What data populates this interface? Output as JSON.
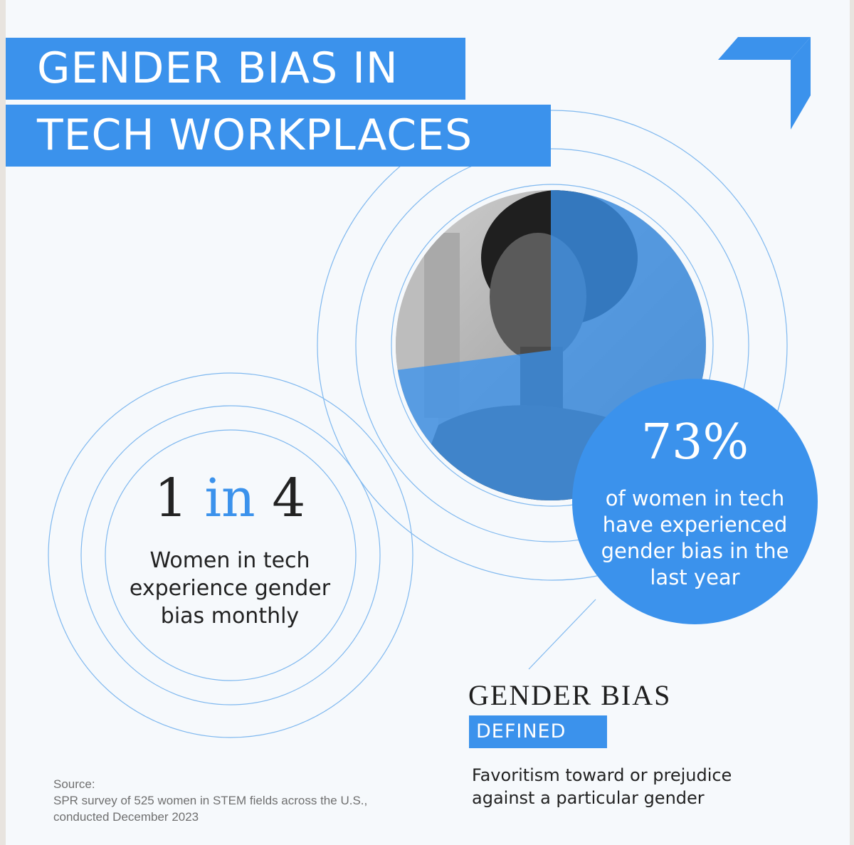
{
  "title": {
    "line1": "GENDER BIAS IN",
    "line2": "TECH WORKPLACES"
  },
  "stat_primary": {
    "value": "73%",
    "caption": "of women in tech have experienced gender bias in the last year"
  },
  "stat_secondary": {
    "ratio_left": "1",
    "ratio_mid": "in",
    "ratio_right": "4",
    "caption": "Women in tech experience gender bias monthly"
  },
  "definition": {
    "heading": "GENDER BIAS",
    "tag": "DEFINED",
    "text": "Favoritism toward or prejudice against a particular gender"
  },
  "source": {
    "label": "Source:",
    "text": "SPR survey of 525 women in STEM fields across the U.S., conducted December 2023"
  },
  "photo": {
    "subject": "portrait of a woman with short curly hair"
  },
  "logo": {
    "icon": "corner-arrow-logo"
  },
  "colors": {
    "accent": "#3b92ec",
    "background": "#f6f9fc",
    "text": "#222222",
    "ring": "#7fb8ef"
  }
}
